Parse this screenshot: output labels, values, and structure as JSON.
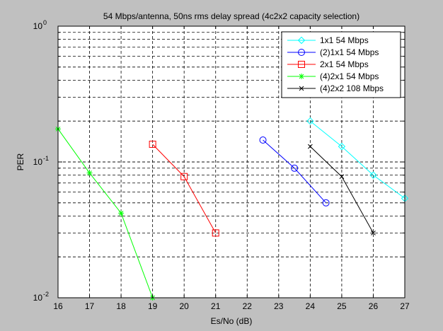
{
  "chart_data": {
    "type": "line",
    "title": "54 Mbps/antenna, 50ns rms delay spread (4c2x2 capacity selection)",
    "xlabel": "Es/No (dB)",
    "ylabel": "PER",
    "xlim": [
      16,
      27
    ],
    "ylim": [
      0.01,
      1
    ],
    "yscale": "log",
    "grid": true,
    "legend_position": "top-right",
    "x_ticks": [
      "16",
      "17",
      "18",
      "19",
      "20",
      "21",
      "22",
      "23",
      "24",
      "25",
      "26",
      "27"
    ],
    "y_ticks": [
      {
        "value": 0.01,
        "base": "10",
        "exp": "-2"
      },
      {
        "value": 0.1,
        "base": "10",
        "exp": "-1"
      },
      {
        "value": 1,
        "base": "10",
        "exp": "0"
      }
    ],
    "series": [
      {
        "name": "1x1      54 Mbps",
        "color": "#00ffff",
        "marker": "diamond",
        "x": [
          24,
          25,
          26,
          27
        ],
        "y": [
          0.2,
          0.13,
          0.08,
          0.054
        ]
      },
      {
        "name": "(2)1x1  54 Mbps",
        "color": "#0000ff",
        "marker": "circle",
        "x": [
          22.5,
          23.5,
          24.5
        ],
        "y": [
          0.145,
          0.09,
          0.05
        ]
      },
      {
        "name": "2x1      54 Mbps",
        "color": "#ff0000",
        "marker": "square",
        "x": [
          19,
          20,
          21
        ],
        "y": [
          0.135,
          0.078,
          0.03
        ]
      },
      {
        "name": "(4)2x1  54 Mbps",
        "color": "#00ff00",
        "marker": "asterisk",
        "x": [
          16,
          17,
          18,
          19
        ],
        "y": [
          0.175,
          0.083,
          0.042,
          0.01
        ]
      },
      {
        "name": "(4)2x2 108 Mbps",
        "color": "#000000",
        "marker": "x",
        "x": [
          24,
          25,
          26
        ],
        "y": [
          0.13,
          0.078,
          0.03
        ]
      }
    ]
  }
}
